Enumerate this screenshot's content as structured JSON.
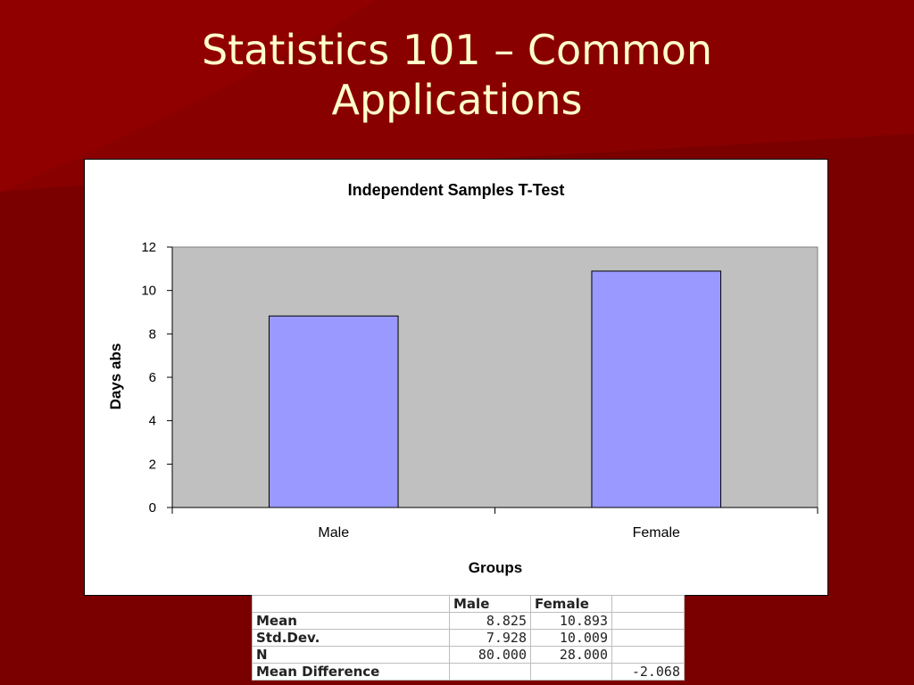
{
  "slide": {
    "title_line1": "Statistics 101 – Common",
    "title_line2": "Applications"
  },
  "colors": {
    "background": "#7a0000",
    "title_text": "#ffffcc",
    "plot_area": "#c0c0c0",
    "bar_fill": "#9999ff"
  },
  "chart_data": {
    "type": "bar",
    "title": "Independent Samples T-Test",
    "xlabel": "Groups",
    "ylabel": "Days abs",
    "categories": [
      "Male",
      "Female"
    ],
    "values": [
      8.825,
      10.893
    ],
    "ylim": [
      0,
      12
    ],
    "yticks": [
      0,
      2,
      4,
      6,
      8,
      10,
      12
    ],
    "grid": false,
    "legend": "none"
  },
  "table": {
    "headers": [
      "",
      "Male",
      "Female",
      ""
    ],
    "rows": [
      [
        "Mean",
        "8.825",
        "10.893",
        ""
      ],
      [
        "Std.Dev.",
        "7.928",
        "10.009",
        ""
      ],
      [
        "N",
        "80.000",
        "28.000",
        ""
      ],
      [
        "Mean Difference",
        "",
        "",
        "-2.068"
      ]
    ]
  }
}
